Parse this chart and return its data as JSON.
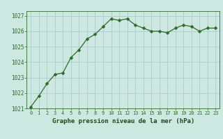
{
  "hours": [
    0,
    1,
    2,
    3,
    4,
    5,
    6,
    7,
    8,
    9,
    10,
    11,
    12,
    13,
    14,
    15,
    16,
    17,
    18,
    19,
    20,
    21,
    22,
    23
  ],
  "pressure": [
    1021.1,
    1021.8,
    1022.6,
    1023.2,
    1023.3,
    1024.3,
    1024.8,
    1025.5,
    1025.8,
    1026.3,
    1026.8,
    1026.7,
    1026.8,
    1026.4,
    1026.2,
    1026.0,
    1026.0,
    1025.9,
    1026.2,
    1026.4,
    1026.3,
    1026.0,
    1026.2,
    1026.2
  ],
  "line_color": "#2d6a2d",
  "marker": "D",
  "marker_size": 2.5,
  "bg_color": "#cce8e0",
  "grid_color": "#aacccc",
  "ylim": [
    1021.0,
    1027.3
  ],
  "xlim": [
    -0.5,
    23.5
  ],
  "yticks": [
    1021,
    1022,
    1023,
    1024,
    1025,
    1026,
    1027
  ],
  "xticks": [
    0,
    1,
    2,
    3,
    4,
    5,
    6,
    7,
    8,
    9,
    10,
    11,
    12,
    13,
    14,
    15,
    16,
    17,
    18,
    19,
    20,
    21,
    22,
    23
  ],
  "xlabel": "Graphe pression niveau de la mer (hPa)",
  "xlabel_color": "#1a4a1a",
  "tick_color": "#2d6a2d",
  "spine_color": "#2d6a2d",
  "bottom_bg": "#2d6a2d"
}
